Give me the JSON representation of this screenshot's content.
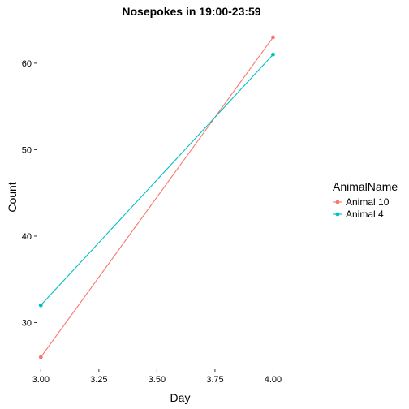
{
  "chart_data": {
    "type": "line",
    "title": "Nosepokes in 19:00-23:59",
    "xlabel": "Day",
    "ylabel": "Count",
    "xlim": [
      2.985,
      4.215
    ],
    "ylim": [
      24.6,
      64.4
    ],
    "x_ticks": [
      3.0,
      3.25,
      3.5,
      3.75,
      4.0
    ],
    "x_tick_labels": [
      "3.00",
      "3.25",
      "3.50",
      "3.75",
      "4.00"
    ],
    "y_ticks": [
      30,
      40,
      50,
      60
    ],
    "y_tick_labels": [
      "30",
      "40",
      "50",
      "60"
    ],
    "grid": false,
    "legend": {
      "title": "AnimalName",
      "placement": "right"
    },
    "series": [
      {
        "name": "Animal 10",
        "color": "#F8766D",
        "x": [
          3.0,
          4.0
        ],
        "y": [
          26,
          63
        ]
      },
      {
        "name": "Animal 4",
        "color": "#00BFC4",
        "x": [
          3.0,
          4.0
        ],
        "y": [
          32,
          61
        ]
      }
    ]
  }
}
